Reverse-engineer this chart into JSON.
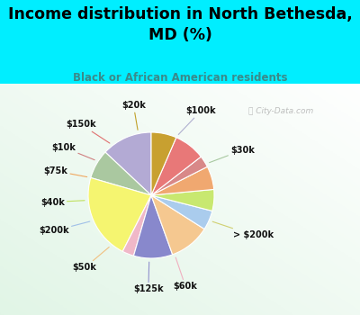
{
  "title": "Income distribution in North Bethesda,\nMD (%)",
  "subtitle": "Black or African American residents",
  "title_color": "#000000",
  "subtitle_color": "#3a8a8a",
  "bg_cyan": "#00EEFF",
  "watermark": "City-Data.com",
  "labels": [
    "$100k",
    "$30k",
    "> $200k",
    "$60k",
    "$125k",
    "$50k",
    "$200k",
    "$40k",
    "$75k",
    "$10k",
    "$150k",
    "$20k"
  ],
  "values": [
    13.0,
    7.5,
    22.0,
    3.0,
    10.0,
    10.5,
    5.0,
    5.5,
    6.0,
    3.0,
    8.0,
    6.5
  ],
  "colors": [
    "#b3aad4",
    "#aac8a0",
    "#f5f570",
    "#f0b8c8",
    "#8888cc",
    "#f5c890",
    "#aacced",
    "#c8e870",
    "#f0a870",
    "#d88888",
    "#e87878",
    "#c8a030"
  ],
  "startangle": 90
}
